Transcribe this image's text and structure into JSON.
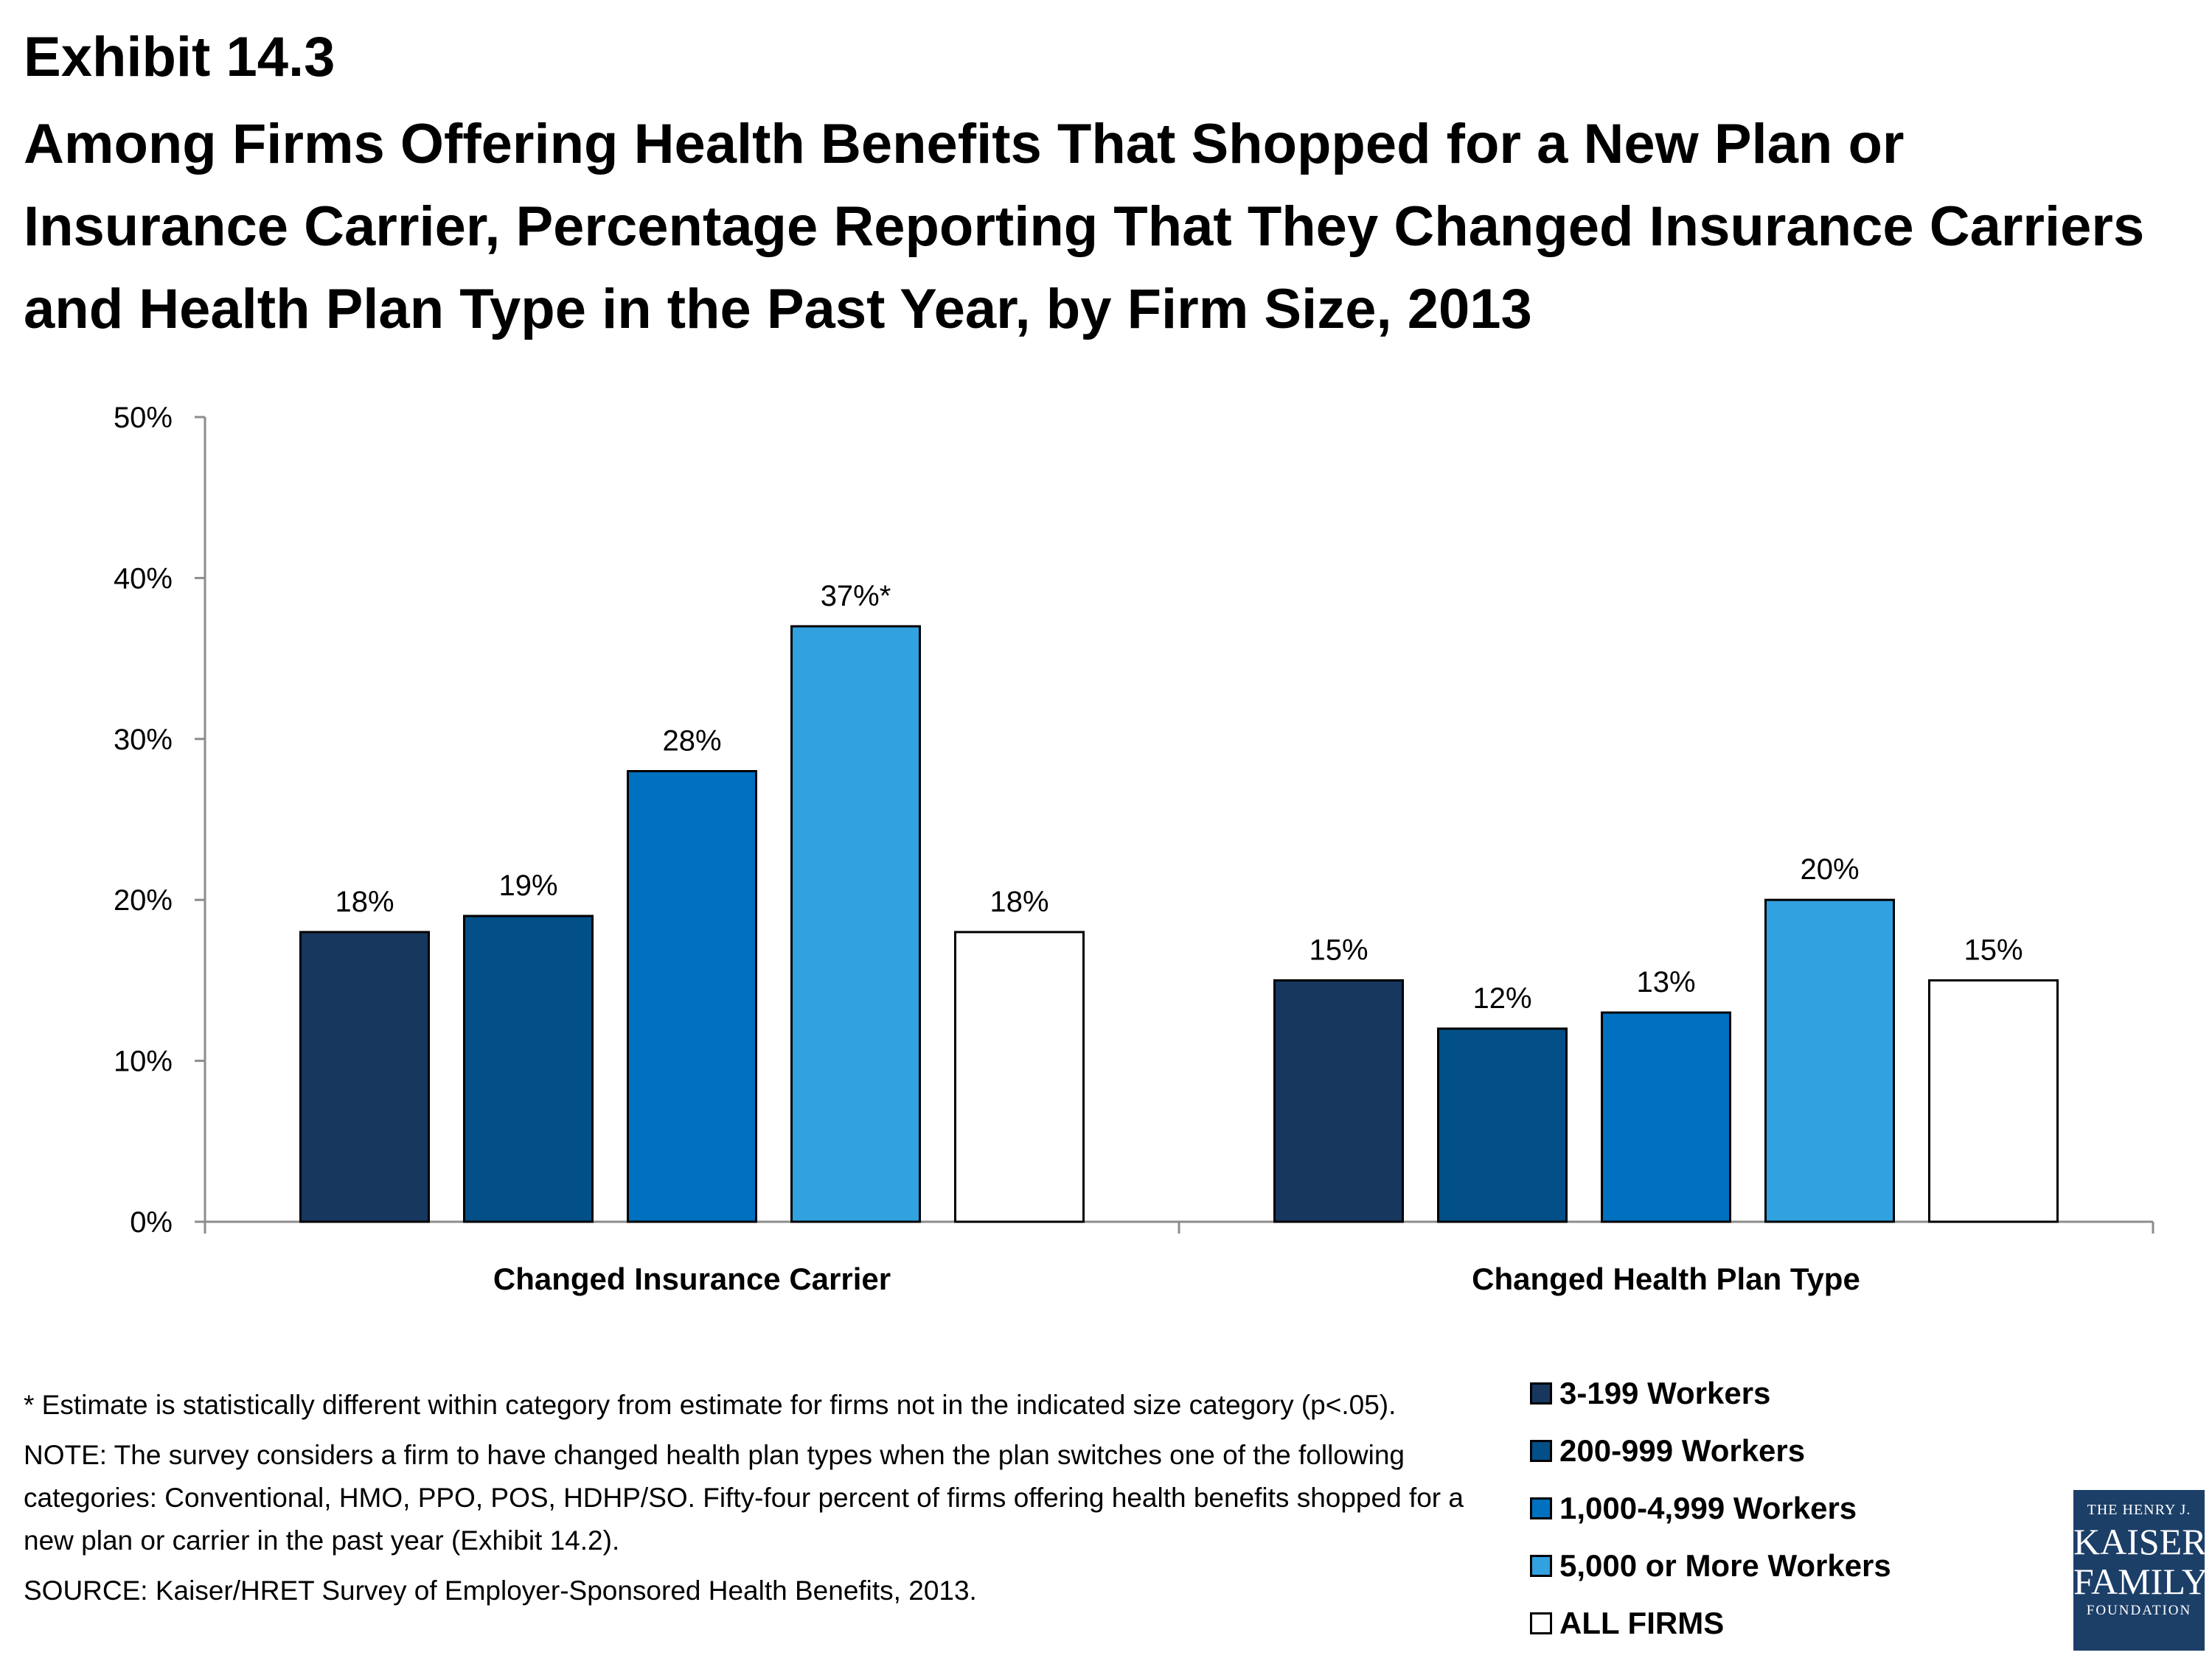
{
  "header": {
    "exhibit": "Exhibit 14.3",
    "title": "Among Firms Offering Health Benefits That Shopped for a New Plan or Insurance Carrier, Percentage Reporting That They Changed Insurance Carriers and Health Plan Type in the Past Year, by Firm Size, 2013"
  },
  "chart_data": {
    "type": "bar",
    "categories": [
      "Changed Insurance Carrier",
      "Changed Health Plan Type"
    ],
    "series": [
      {
        "name": "3-199 Workers",
        "values": [
          18,
          15
        ],
        "labels": [
          "18%",
          "15%"
        ],
        "color": "#17375e"
      },
      {
        "name": "200-999 Workers",
        "values": [
          19,
          12
        ],
        "labels": [
          "19%",
          "12%"
        ],
        "color": "#034f87"
      },
      {
        "name": "1,000-4,999 Workers",
        "values": [
          28,
          13
        ],
        "labels": [
          "28%",
          "13%"
        ],
        "color": "#0070c0"
      },
      {
        "name": "5,000 or More Workers",
        "values": [
          37,
          20
        ],
        "labels": [
          "37%*",
          "20%"
        ],
        "color": "#31a1e0"
      },
      {
        "name": "ALL FIRMS",
        "values": [
          18,
          15
        ],
        "labels": [
          "18%",
          "15%"
        ],
        "color": "#ffffff"
      }
    ],
    "ylim": [
      0,
      50
    ],
    "yticks": [
      0,
      10,
      20,
      30,
      40,
      50
    ],
    "ytick_labels": [
      "0%",
      "10%",
      "20%",
      "30%",
      "40%",
      "50%"
    ],
    "xlabel": "",
    "ylabel": "",
    "legend_position": "bottom-right",
    "grid": false
  },
  "notes": {
    "asterisk": "* Estimate is statistically different within category from estimate for firms not in the indicated size category (p<.05).",
    "note": "NOTE: The survey considers a firm to have changed health plan types when the plan switches one of the following categories: Conventional, HMO, PPO, POS, HDHP/SO.  Fifty-four percent of firms offering health benefits shopped for a new plan or carrier in the past year (Exhibit 14.2).",
    "source": "SOURCE: Kaiser/HRET Survey of Employer-Sponsored Health Benefits, 2013."
  },
  "logo": {
    "line1": "THE HENRY J.",
    "line2": "KAISER",
    "line3": "FAMILY",
    "line4": "FOUNDATION"
  }
}
